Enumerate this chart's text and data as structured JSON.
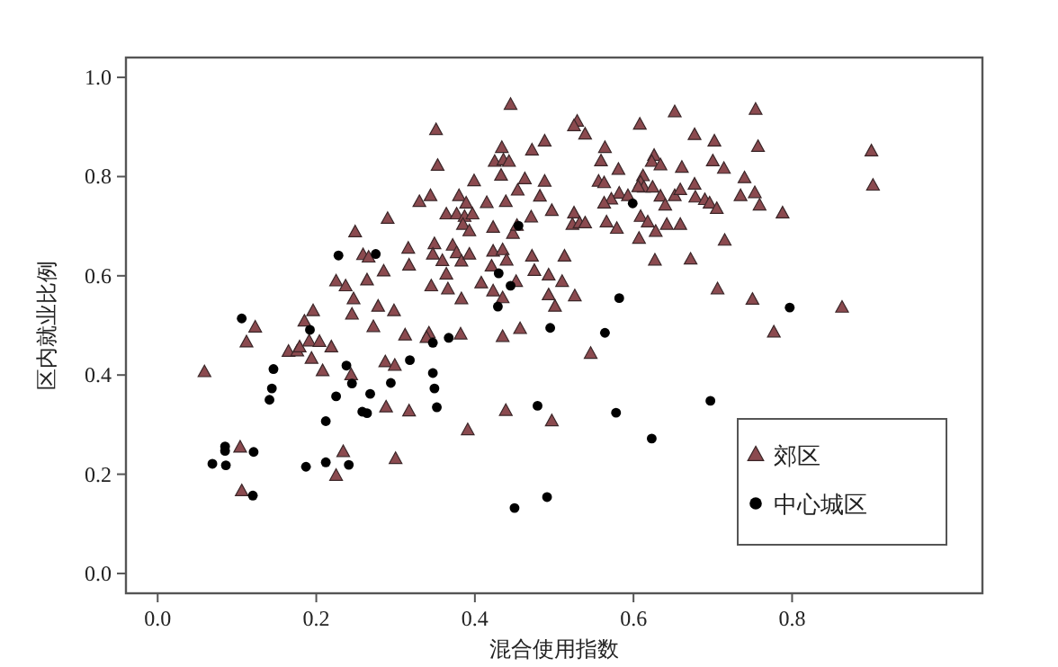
{
  "chart_data": {
    "type": "scatter",
    "xlabel": "混合使用指数",
    "ylabel": "区内就业比例",
    "xlim": [
      -0.04,
      1.04
    ],
    "ylim": [
      -0.04,
      1.04
    ],
    "xticks": [
      {
        "value": 0,
        "label": "0.0"
      },
      {
        "value": 0.2,
        "label": "0.2"
      },
      {
        "value": 0.4,
        "label": "0.4"
      },
      {
        "value": 0.6,
        "label": "0.6"
      },
      {
        "value": 0.8,
        "label": "0.8"
      }
    ],
    "yticks": [
      {
        "value": 0,
        "label": "0.0"
      },
      {
        "value": 0.2,
        "label": "0.2"
      },
      {
        "value": 0.4,
        "label": "0.4"
      },
      {
        "value": 0.6,
        "label": "0.6"
      },
      {
        "value": 0.8,
        "label": "0.8"
      },
      {
        "value": 1,
        "label": "1.0"
      }
    ],
    "grid": false,
    "legend": "bottom right",
    "series": [
      {
        "name": "郊区",
        "color": "#8b4a4f",
        "marker": "triangle",
        "x": [
          0.445,
          0.351,
          0.353,
          0.434,
          0.425,
          0.436,
          0.443,
          0.433,
          0.399,
          0.454,
          0.33,
          0.344,
          0.38,
          0.389,
          0.415,
          0.439,
          0.364,
          0.377,
          0.387,
          0.397,
          0.385,
          0.393,
          0.423,
          0.448,
          0.453,
          0.29,
          0.249,
          0.316,
          0.349,
          0.347,
          0.359,
          0.372,
          0.377,
          0.383,
          0.393,
          0.423,
          0.435,
          0.44,
          0.421,
          0.259,
          0.266,
          0.285,
          0.317,
          0.364,
          0.225,
          0.237,
          0.264,
          0.345,
          0.366,
          0.408,
          0.423,
          0.435,
          0.452,
          0.247,
          0.278,
          0.298,
          0.383,
          0.245,
          0.196,
          0.185,
          0.123,
          0.272,
          0.312,
          0.342,
          0.339,
          0.382,
          0.435,
          0.457,
          0.652,
          0.754,
          0.529,
          0.525,
          0.608,
          0.539,
          0.677,
          0.702,
          0.757,
          0.488,
          0.472,
          0.564,
          0.559,
          0.626,
          0.623,
          0.634,
          0.581,
          0.661,
          0.7,
          0.714,
          0.9,
          0.902,
          0.463,
          0.488,
          0.482,
          0.556,
          0.563,
          0.612,
          0.609,
          0.613,
          0.606,
          0.624,
          0.582,
          0.593,
          0.572,
          0.563,
          0.634,
          0.652,
          0.659,
          0.677,
          0.678,
          0.69,
          0.696,
          0.705,
          0.64,
          0.74,
          0.735,
          0.753,
          0.759,
          0.788,
          0.497,
          0.525,
          0.471,
          0.523,
          0.532,
          0.539,
          0.566,
          0.579,
          0.609,
          0.618,
          0.628,
          0.642,
          0.659,
          0.607,
          0.715,
          0.627,
          0.672,
          0.472,
          0.513,
          0.475,
          0.493,
          0.51,
          0.493,
          0.526,
          0.501,
          0.706,
          0.75,
          0.863,
          0.777,
          0.112,
          0.059,
          0.165,
          0.176,
          0.179,
          0.191,
          0.204,
          0.219,
          0.194,
          0.208,
          0.244,
          0.287,
          0.299,
          0.288,
          0.317,
          0.391,
          0.439,
          0.104,
          0.234,
          0.225,
          0.3,
          0.106,
          0.546,
          0.497
        ],
        "values": [
          0.945,
          0.894,
          0.822,
          0.858,
          0.83,
          0.833,
          0.83,
          0.802,
          0.791,
          0.772,
          0.749,
          0.761,
          0.761,
          0.746,
          0.747,
          0.749,
          0.724,
          0.724,
          0.719,
          0.724,
          0.703,
          0.69,
          0.697,
          0.685,
          0.701,
          0.715,
          0.688,
          0.655,
          0.664,
          0.643,
          0.63,
          0.661,
          0.646,
          0.629,
          0.643,
          0.649,
          0.652,
          0.631,
          0.619,
          0.642,
          0.637,
          0.609,
          0.621,
          0.603,
          0.589,
          0.579,
          0.591,
          0.579,
          0.573,
          0.585,
          0.569,
          0.555,
          0.588,
          0.553,
          0.538,
          0.529,
          0.553,
          0.522,
          0.529,
          0.508,
          0.496,
          0.497,
          0.48,
          0.484,
          0.475,
          0.482,
          0.477,
          0.493,
          0.93,
          0.935,
          0.911,
          0.902,
          0.905,
          0.885,
          0.884,
          0.871,
          0.86,
          0.871,
          0.853,
          0.858,
          0.831,
          0.842,
          0.83,
          0.823,
          0.814,
          0.818,
          0.831,
          0.816,
          0.851,
          0.782,
          0.795,
          0.79,
          0.76,
          0.79,
          0.787,
          0.801,
          0.788,
          0.778,
          0.779,
          0.778,
          0.766,
          0.761,
          0.754,
          0.746,
          0.76,
          0.761,
          0.773,
          0.784,
          0.758,
          0.753,
          0.746,
          0.735,
          0.742,
          0.797,
          0.761,
          0.767,
          0.742,
          0.726,
          0.731,
          0.726,
          0.718,
          0.703,
          0.706,
          0.706,
          0.708,
          0.695,
          0.719,
          0.708,
          0.689,
          0.703,
          0.703,
          0.675,
          0.671,
          0.631,
          0.633,
          0.639,
          0.639,
          0.61,
          0.601,
          0.588,
          0.561,
          0.559,
          0.538,
          0.573,
          0.552,
          0.536,
          0.486,
          0.466,
          0.406,
          0.447,
          0.448,
          0.456,
          0.468,
          0.467,
          0.456,
          0.433,
          0.408,
          0.4,
          0.426,
          0.419,
          0.335,
          0.327,
          0.289,
          0.328,
          0.254,
          0.245,
          0.197,
          0.231,
          0.166,
          0.443,
          0.307
        ]
      },
      {
        "name": "中心城区",
        "color": "#000000",
        "marker": "circle",
        "x": [
          0.228,
          0.275,
          0.43,
          0.445,
          0.429,
          0.106,
          0.192,
          0.367,
          0.599,
          0.455,
          0.582,
          0.797,
          0.495,
          0.564,
          0.347,
          0.146,
          0.144,
          0.141,
          0.238,
          0.245,
          0.225,
          0.212,
          0.268,
          0.258,
          0.264,
          0.294,
          0.318,
          0.347,
          0.349,
          0.352,
          0.085,
          0.085,
          0.121,
          0.069,
          0.086,
          0.187,
          0.212,
          0.241,
          0.12,
          0.45,
          0.479,
          0.578,
          0.697,
          0.623,
          0.491
        ],
        "values": [
          0.641,
          0.644,
          0.605,
          0.58,
          0.538,
          0.514,
          0.491,
          0.475,
          0.746,
          0.701,
          0.555,
          0.536,
          0.495,
          0.485,
          0.465,
          0.412,
          0.373,
          0.35,
          0.419,
          0.383,
          0.357,
          0.307,
          0.362,
          0.326,
          0.323,
          0.384,
          0.43,
          0.404,
          0.373,
          0.335,
          0.256,
          0.247,
          0.245,
          0.221,
          0.218,
          0.215,
          0.224,
          0.219,
          0.157,
          0.132,
          0.338,
          0.324,
          0.348,
          0.272,
          0.154
        ]
      }
    ]
  }
}
